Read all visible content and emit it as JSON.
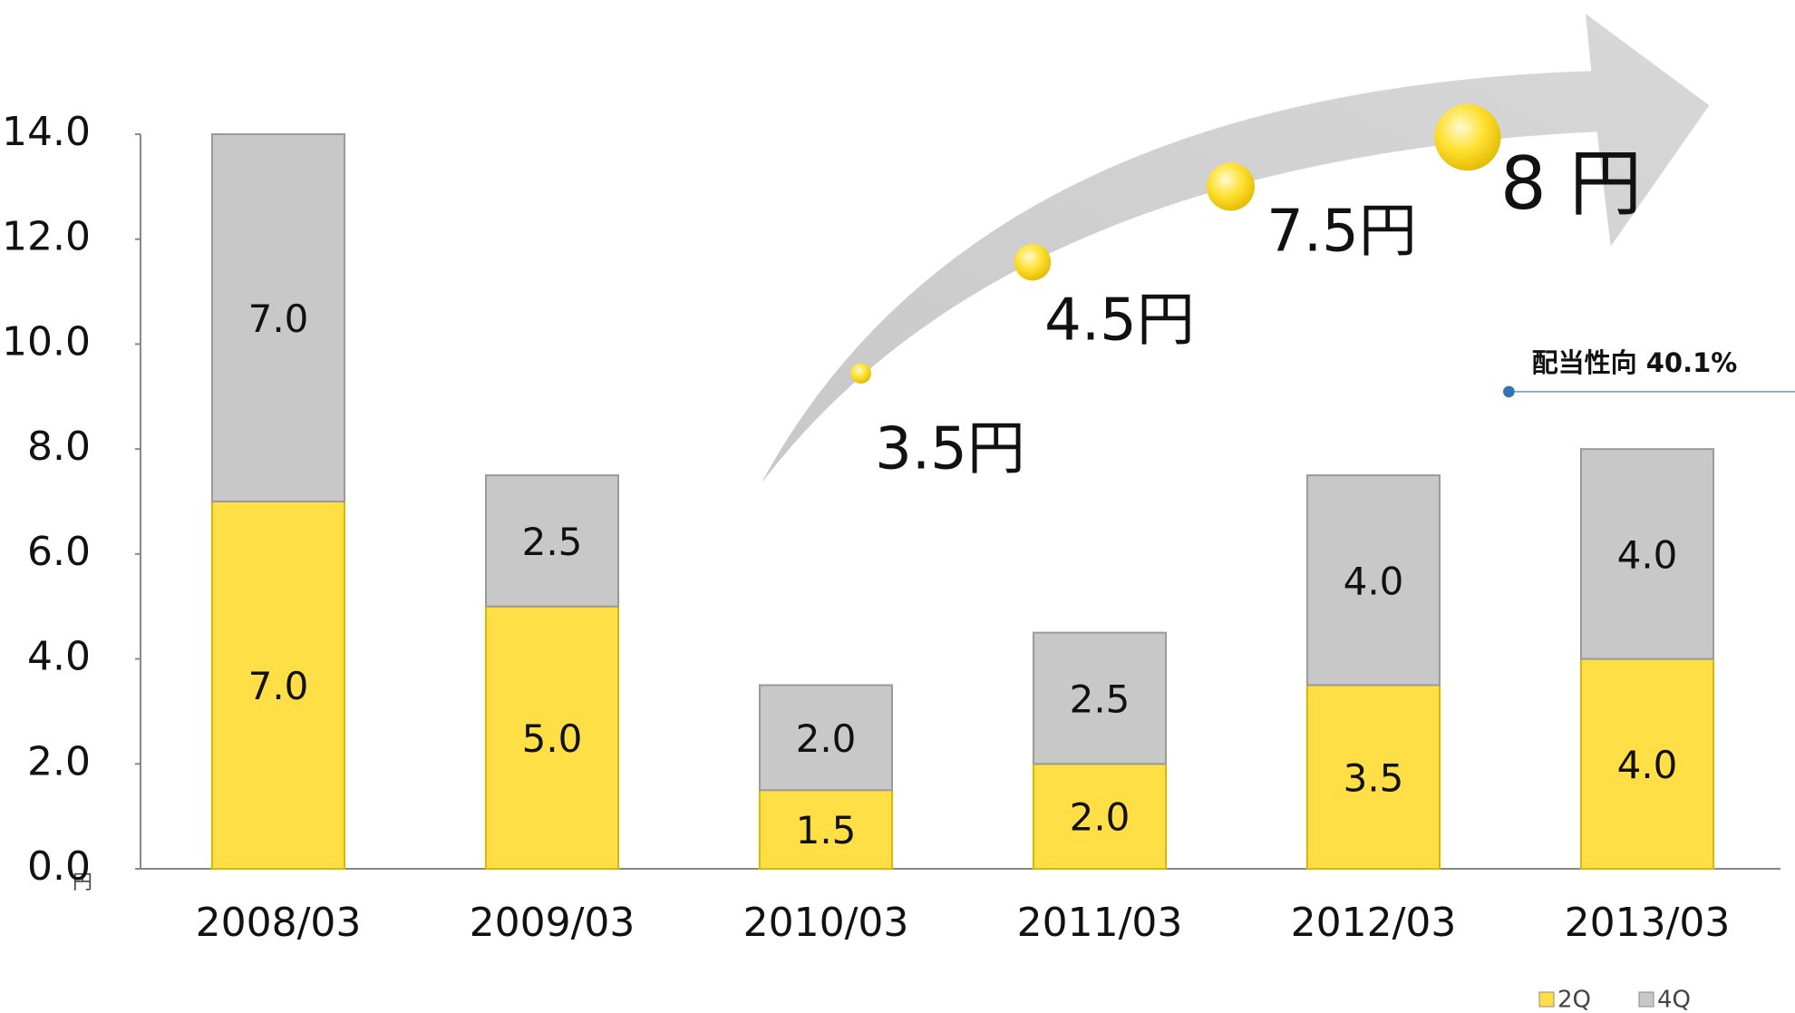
{
  "chart_data": {
    "type": "bar",
    "stacked": true,
    "categories": [
      "2008/03",
      "2009/03",
      "2010/03",
      "2011/03",
      "2012/03",
      "2013/03"
    ],
    "series": [
      {
        "name": "2Q",
        "color": "#FFDF45",
        "values": [
          7,
          5,
          1.5,
          2,
          3.5,
          4
        ],
        "value_labels": [
          "7.0",
          "5.0",
          "1.5",
          "2.0",
          "3.5",
          "4.0"
        ]
      },
      {
        "name": "4Q",
        "color": "#C8C8C8",
        "values": [
          7,
          2.5,
          2,
          2.5,
          4,
          4
        ],
        "value_labels": [
          "7.0",
          "2.5",
          "2.0",
          "2.5",
          "4.0",
          "4.0"
        ]
      }
    ],
    "ylim": [
      0,
      14
    ],
    "yticks": [
      {
        "value": 0,
        "label": "0.0"
      },
      {
        "value": 2,
        "label": "2.0"
      },
      {
        "value": 4,
        "label": "4.0"
      },
      {
        "value": 6,
        "label": "6.0"
      },
      {
        "value": 8,
        "label": "8.0"
      },
      {
        "value": 10,
        "label": "10.0"
      },
      {
        "value": 12,
        "label": "12.0"
      },
      {
        "value": 14,
        "label": "14.0"
      }
    ],
    "y_unit": "円",
    "annotations": [
      "3.5円",
      "4.5円",
      "7.5円",
      "8 円",
      "配当性向 40.1%"
    ],
    "legend": "bottom-right"
  }
}
